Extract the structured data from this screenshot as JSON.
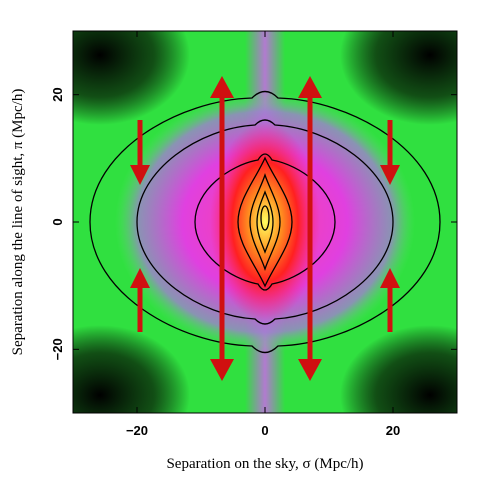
{
  "chart_data": {
    "type": "heatmap",
    "xlabel": "Separation on the sky, σ (Mpc/h)",
    "ylabel": "Separation along the line of sight, π (Mpc/h)",
    "xlim": [
      -30,
      30
    ],
    "ylim": [
      -30,
      30
    ],
    "xticks": [
      {
        "value": -20,
        "label": "−20"
      },
      0,
      20
    ],
    "yticks": [
      {
        "value": -20,
        "label": "−20"
      },
      0,
      20
    ]
  }
}
